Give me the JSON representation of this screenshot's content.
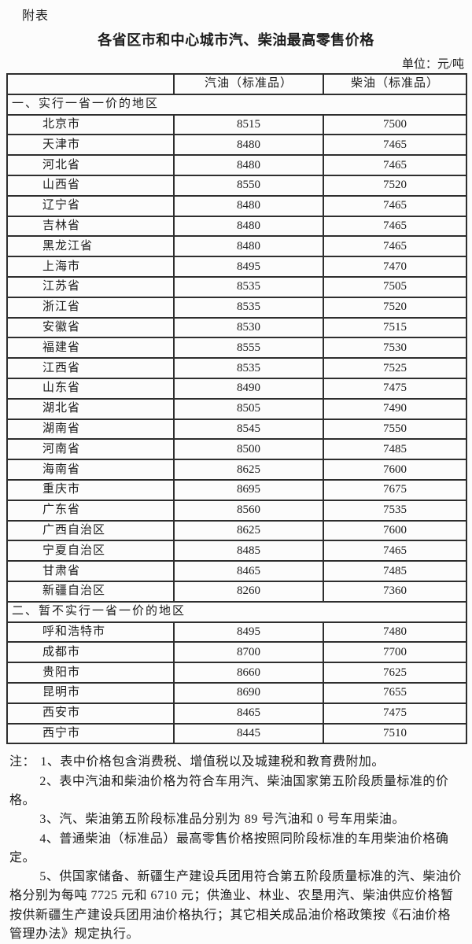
{
  "document": {
    "label": "附表",
    "title": "各省区市和中心城市汽、柴油最高零售价格",
    "unit": "单位：元/吨"
  },
  "table": {
    "columns": [
      "",
      "汽油（标准品）",
      "柴油（标准品）"
    ],
    "sections": [
      {
        "header": "一、实行一省一价的地区",
        "rows": [
          {
            "region": "北京市",
            "gasoline": "8515",
            "diesel": "7500"
          },
          {
            "region": "天津市",
            "gasoline": "8480",
            "diesel": "7465"
          },
          {
            "region": "河北省",
            "gasoline": "8480",
            "diesel": "7465"
          },
          {
            "region": "山西省",
            "gasoline": "8550",
            "diesel": "7520"
          },
          {
            "region": "辽宁省",
            "gasoline": "8480",
            "diesel": "7465"
          },
          {
            "region": "吉林省",
            "gasoline": "8480",
            "diesel": "7465"
          },
          {
            "region": "黑龙江省",
            "gasoline": "8480",
            "diesel": "7465"
          },
          {
            "region": "上海市",
            "gasoline": "8495",
            "diesel": "7470"
          },
          {
            "region": "江苏省",
            "gasoline": "8535",
            "diesel": "7505"
          },
          {
            "region": "浙江省",
            "gasoline": "8535",
            "diesel": "7520"
          },
          {
            "region": "安徽省",
            "gasoline": "8530",
            "diesel": "7515"
          },
          {
            "region": "福建省",
            "gasoline": "8555",
            "diesel": "7530"
          },
          {
            "region": "江西省",
            "gasoline": "8535",
            "diesel": "7525"
          },
          {
            "region": "山东省",
            "gasoline": "8490",
            "diesel": "7475"
          },
          {
            "region": "湖北省",
            "gasoline": "8505",
            "diesel": "7490"
          },
          {
            "region": "湖南省",
            "gasoline": "8545",
            "diesel": "7550"
          },
          {
            "region": "河南省",
            "gasoline": "8500",
            "diesel": "7485"
          },
          {
            "region": "海南省",
            "gasoline": "8625",
            "diesel": "7600"
          },
          {
            "region": "重庆市",
            "gasoline": "8695",
            "diesel": "7675"
          },
          {
            "region": "广东省",
            "gasoline": "8560",
            "diesel": "7535"
          },
          {
            "region": "广西自治区",
            "gasoline": "8625",
            "diesel": "7600"
          },
          {
            "region": "宁夏自治区",
            "gasoline": "8485",
            "diesel": "7465"
          },
          {
            "region": "甘肃省",
            "gasoline": "8465",
            "diesel": "7485"
          },
          {
            "region": "新疆自治区",
            "gasoline": "8260",
            "diesel": "7360"
          }
        ]
      },
      {
        "header": "二、暂不实行一省一价的地区",
        "rows": [
          {
            "region": "呼和浩特市",
            "gasoline": "8495",
            "diesel": "7480"
          },
          {
            "region": "成都市",
            "gasoline": "8700",
            "diesel": "7700"
          },
          {
            "region": "贵阳市",
            "gasoline": "8660",
            "diesel": "7625"
          },
          {
            "region": "昆明市",
            "gasoline": "8690",
            "diesel": "7655"
          },
          {
            "region": "西安市",
            "gasoline": "8465",
            "diesel": "7475"
          },
          {
            "region": "西宁市",
            "gasoline": "8445",
            "diesel": "7510"
          }
        ]
      }
    ]
  },
  "notes": {
    "prefix": "注：",
    "items": [
      "1、表中价格包含消费税、增值税以及城建税和教育费附加。",
      "2、表中汽油和柴油价格为符合车用汽、柴油国家第五阶段质量标准的价格。",
      "3、汽、柴油第五阶段标准品分别为 89 号汽油和 0 号车用柴油。",
      "4、普通柴油（标准品）最高零售价格按照同阶段标准的车用柴油价格确定。",
      "5、供国家储备、新疆生产建设兵团用符合第五阶段质量标准的汽、柴油价格分别为每吨 7725 元和 6710 元；供渔业、林业、农垦用汽、柴油供应价格暂按供新疆生产建设兵团用油价格执行；其它相关成品油价格政策按《石油价格管理办法》规定执行。"
    ]
  }
}
